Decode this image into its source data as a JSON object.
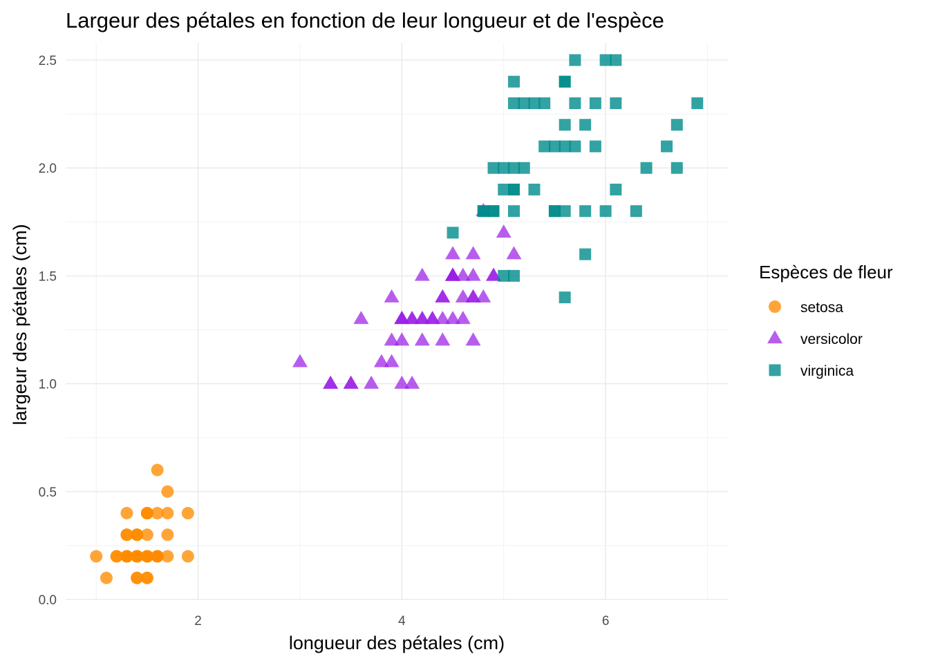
{
  "chart_data": {
    "type": "scatter",
    "title": "Largeur des pétales en fonction de leur longueur et de l'espèce",
    "xlabel": "longueur des pétales (cm)",
    "ylabel": "largeur des pétales (cm)",
    "xlim": [
      0.7,
      7.2
    ],
    "ylim": [
      0.0,
      2.58
    ],
    "x_ticks": [
      2,
      4,
      6
    ],
    "y_ticks": [
      0.0,
      0.5,
      1.0,
      1.5,
      2.0,
      2.5
    ],
    "x_tick_labels": [
      "2",
      "4",
      "6"
    ],
    "y_tick_labels": [
      "0.0",
      "0.5",
      "1.0",
      "1.5",
      "2.0",
      "2.5"
    ],
    "grid": true,
    "legend": {
      "title": "Espèces de fleur",
      "position": "right"
    },
    "series": [
      {
        "name": "setosa",
        "color": "#ff8c00",
        "marker": "circle",
        "x": [
          1.4,
          1.4,
          1.3,
          1.5,
          1.4,
          1.7,
          1.4,
          1.5,
          1.4,
          1.5,
          1.5,
          1.6,
          1.4,
          1.1,
          1.2,
          1.5,
          1.3,
          1.4,
          1.7,
          1.5,
          1.7,
          1.5,
          1.0,
          1.7,
          1.9,
          1.6,
          1.6,
          1.5,
          1.4,
          1.6,
          1.6,
          1.5,
          1.5,
          1.4,
          1.5,
          1.2,
          1.3,
          1.4,
          1.3,
          1.5,
          1.3,
          1.3,
          1.3,
          1.6,
          1.9,
          1.4,
          1.6,
          1.4,
          1.5,
          1.4
        ],
        "y": [
          0.2,
          0.2,
          0.2,
          0.2,
          0.2,
          0.4,
          0.3,
          0.2,
          0.2,
          0.1,
          0.2,
          0.2,
          0.1,
          0.1,
          0.2,
          0.4,
          0.4,
          0.3,
          0.3,
          0.3,
          0.2,
          0.4,
          0.2,
          0.5,
          0.2,
          0.2,
          0.4,
          0.2,
          0.2,
          0.2,
          0.2,
          0.4,
          0.1,
          0.2,
          0.2,
          0.2,
          0.2,
          0.1,
          0.2,
          0.2,
          0.3,
          0.3,
          0.2,
          0.6,
          0.4,
          0.3,
          0.2,
          0.2,
          0.2,
          0.2
        ]
      },
      {
        "name": "versicolor",
        "color": "#9b1ee6",
        "marker": "triangle",
        "x": [
          4.7,
          4.5,
          4.9,
          4.0,
          4.6,
          4.5,
          4.7,
          3.3,
          4.6,
          3.9,
          3.5,
          4.2,
          4.0,
          4.7,
          3.6,
          4.4,
          4.5,
          4.1,
          4.5,
          3.9,
          4.8,
          4.0,
          4.9,
          4.7,
          4.3,
          4.4,
          4.8,
          5.0,
          4.5,
          3.5,
          3.8,
          3.7,
          3.9,
          5.1,
          4.5,
          4.5,
          4.7,
          4.4,
          4.1,
          4.0,
          4.4,
          4.6,
          4.0,
          3.3,
          4.2,
          4.2,
          4.2,
          4.3,
          3.0,
          4.1
        ],
        "y": [
          1.4,
          1.5,
          1.5,
          1.3,
          1.5,
          1.3,
          1.6,
          1.0,
          1.3,
          1.4,
          1.0,
          1.5,
          1.0,
          1.4,
          1.3,
          1.4,
          1.5,
          1.0,
          1.5,
          1.1,
          1.8,
          1.3,
          1.5,
          1.2,
          1.3,
          1.4,
          1.4,
          1.7,
          1.5,
          1.0,
          1.1,
          1.0,
          1.2,
          1.6,
          1.5,
          1.6,
          1.5,
          1.3,
          1.3,
          1.3,
          1.2,
          1.4,
          1.2,
          1.0,
          1.3,
          1.2,
          1.3,
          1.3,
          1.1,
          1.3
        ]
      },
      {
        "name": "virginica",
        "color": "#008b8b",
        "marker": "square",
        "x": [
          6.0,
          5.1,
          5.9,
          5.6,
          5.8,
          6.6,
          4.5,
          6.3,
          5.8,
          6.1,
          5.1,
          5.3,
          5.5,
          5.0,
          5.1,
          5.3,
          5.5,
          6.7,
          6.9,
          5.0,
          5.7,
          4.9,
          6.7,
          4.9,
          5.7,
          6.0,
          4.8,
          4.9,
          5.6,
          5.8,
          6.1,
          6.4,
          5.6,
          5.1,
          5.6,
          6.1,
          5.6,
          5.5,
          4.8,
          5.4,
          5.6,
          5.1,
          5.1,
          5.9,
          5.7,
          5.2,
          5.0,
          5.2,
          5.4,
          5.1
        ],
        "y": [
          2.5,
          1.9,
          2.1,
          1.8,
          2.2,
          2.1,
          1.7,
          1.8,
          1.8,
          2.5,
          2.0,
          1.9,
          2.1,
          2.0,
          2.4,
          2.3,
          1.8,
          2.2,
          2.3,
          1.5,
          2.3,
          2.0,
          2.0,
          1.8,
          2.1,
          1.8,
          1.8,
          1.8,
          2.1,
          1.6,
          1.9,
          2.0,
          2.2,
          1.5,
          1.4,
          2.3,
          2.4,
          1.8,
          1.8,
          2.1,
          2.4,
          2.3,
          1.9,
          2.3,
          2.5,
          2.3,
          1.9,
          2.0,
          2.3,
          1.8
        ]
      }
    ]
  }
}
